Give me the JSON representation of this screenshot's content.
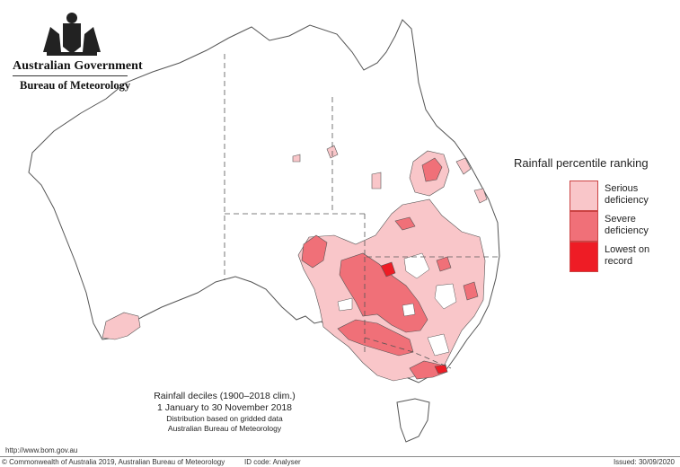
{
  "header": {
    "government": "Australian Government",
    "bureau": "Bureau of Meteorology"
  },
  "legend": {
    "title": "Rainfall percentile ranking",
    "items": [
      {
        "label_line1": "Serious",
        "label_line2": "deficiency",
        "color": "#f9c6c9"
      },
      {
        "label_line1": "Severe",
        "label_line2": "deficiency",
        "color": "#f07078"
      },
      {
        "label_line1": "Lowest on",
        "label_line2": "record",
        "color": "#ee1c25"
      }
    ]
  },
  "caption": {
    "line1": "Rainfall deciles (1900–2018 clim.)",
    "line2": "1 January to 30 November 2018",
    "line3": "Distribution based on gridded data",
    "line4": "Australian Bureau of Meteorology"
  },
  "footer": {
    "url": "http://www.bom.gov.au",
    "copyright": "© Commonwealth of Australia 2019, Australian Bureau of Meteorology",
    "id_code": "ID code: Analyser",
    "issued": "Issued: 30/09/2020"
  },
  "colors": {
    "serious": "#f9c6c9",
    "severe": "#f07078",
    "record": "#ee1c25",
    "outline": "#555555"
  }
}
